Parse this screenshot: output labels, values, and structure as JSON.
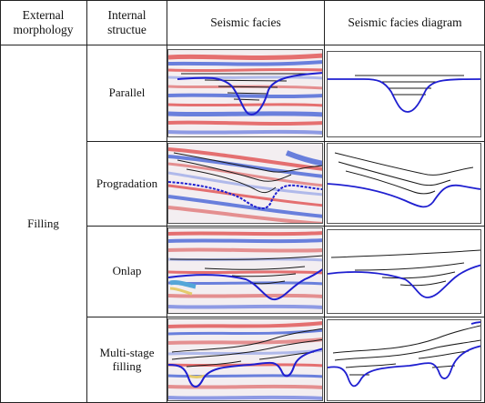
{
  "headers": {
    "external_morphology": "External\nmorphology",
    "internal_structure": "Internal\nstructue",
    "seismic_facies": "Seismic facies",
    "seismic_facies_diagram": "Seismic facies diagram"
  },
  "external_morphology_value": "Filling",
  "rows": [
    {
      "internal_structure": "Parallel"
    },
    {
      "internal_structure": "Progradation"
    },
    {
      "internal_structure": "Onlap"
    },
    {
      "internal_structure": "Multi-stage\nfilling"
    }
  ],
  "colors": {
    "outline": "#1f1fd0",
    "reflector": "#1a1a1a",
    "grid": "#222222",
    "seismic_red": "#e04545",
    "seismic_blue": "#3b5bd6"
  }
}
